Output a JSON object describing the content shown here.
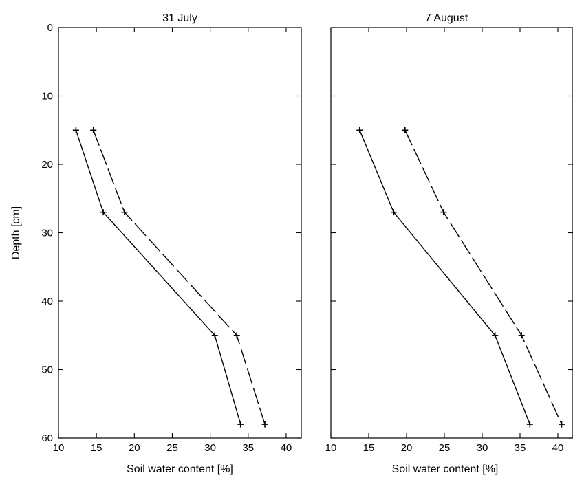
{
  "chart_data": [
    {
      "type": "line",
      "title": "31 July",
      "xlabel": "Soil water content [%]",
      "ylabel": "Depth [cm]",
      "xlim": [
        10,
        42
      ],
      "ylim": [
        0,
        60
      ],
      "y_inverted": true,
      "x_ticks": [
        10,
        15,
        20,
        25,
        30,
        35,
        40
      ],
      "y_ticks": [
        0,
        10,
        20,
        30,
        40,
        50,
        60
      ],
      "series": [
        {
          "style": "solid",
          "points": [
            [
              12.3,
              15
            ],
            [
              15.9,
              27
            ],
            [
              30.6,
              45
            ],
            [
              34.0,
              58
            ]
          ]
        },
        {
          "style": "dashed",
          "points": [
            [
              14.6,
              15
            ],
            [
              18.7,
              27
            ],
            [
              33.5,
              45
            ],
            [
              37.2,
              58
            ]
          ]
        }
      ]
    },
    {
      "type": "line",
      "title": "7 August",
      "xlabel": "Soil water content [%]",
      "ylabel": "",
      "xlim": [
        10,
        42
      ],
      "ylim": [
        0,
        60
      ],
      "y_inverted": true,
      "x_ticks": [
        10,
        15,
        20,
        25,
        30,
        35,
        40
      ],
      "y_ticks": [
        0,
        10,
        20,
        30,
        40,
        50,
        60
      ],
      "series": [
        {
          "style": "solid",
          "points": [
            [
              13.8,
              15
            ],
            [
              18.3,
              27
            ],
            [
              31.7,
              45
            ],
            [
              36.3,
              58
            ]
          ]
        },
        {
          "style": "dashed",
          "points": [
            [
              19.8,
              15
            ],
            [
              24.9,
              27
            ],
            [
              35.2,
              45
            ],
            [
              40.5,
              58
            ]
          ]
        }
      ]
    }
  ]
}
